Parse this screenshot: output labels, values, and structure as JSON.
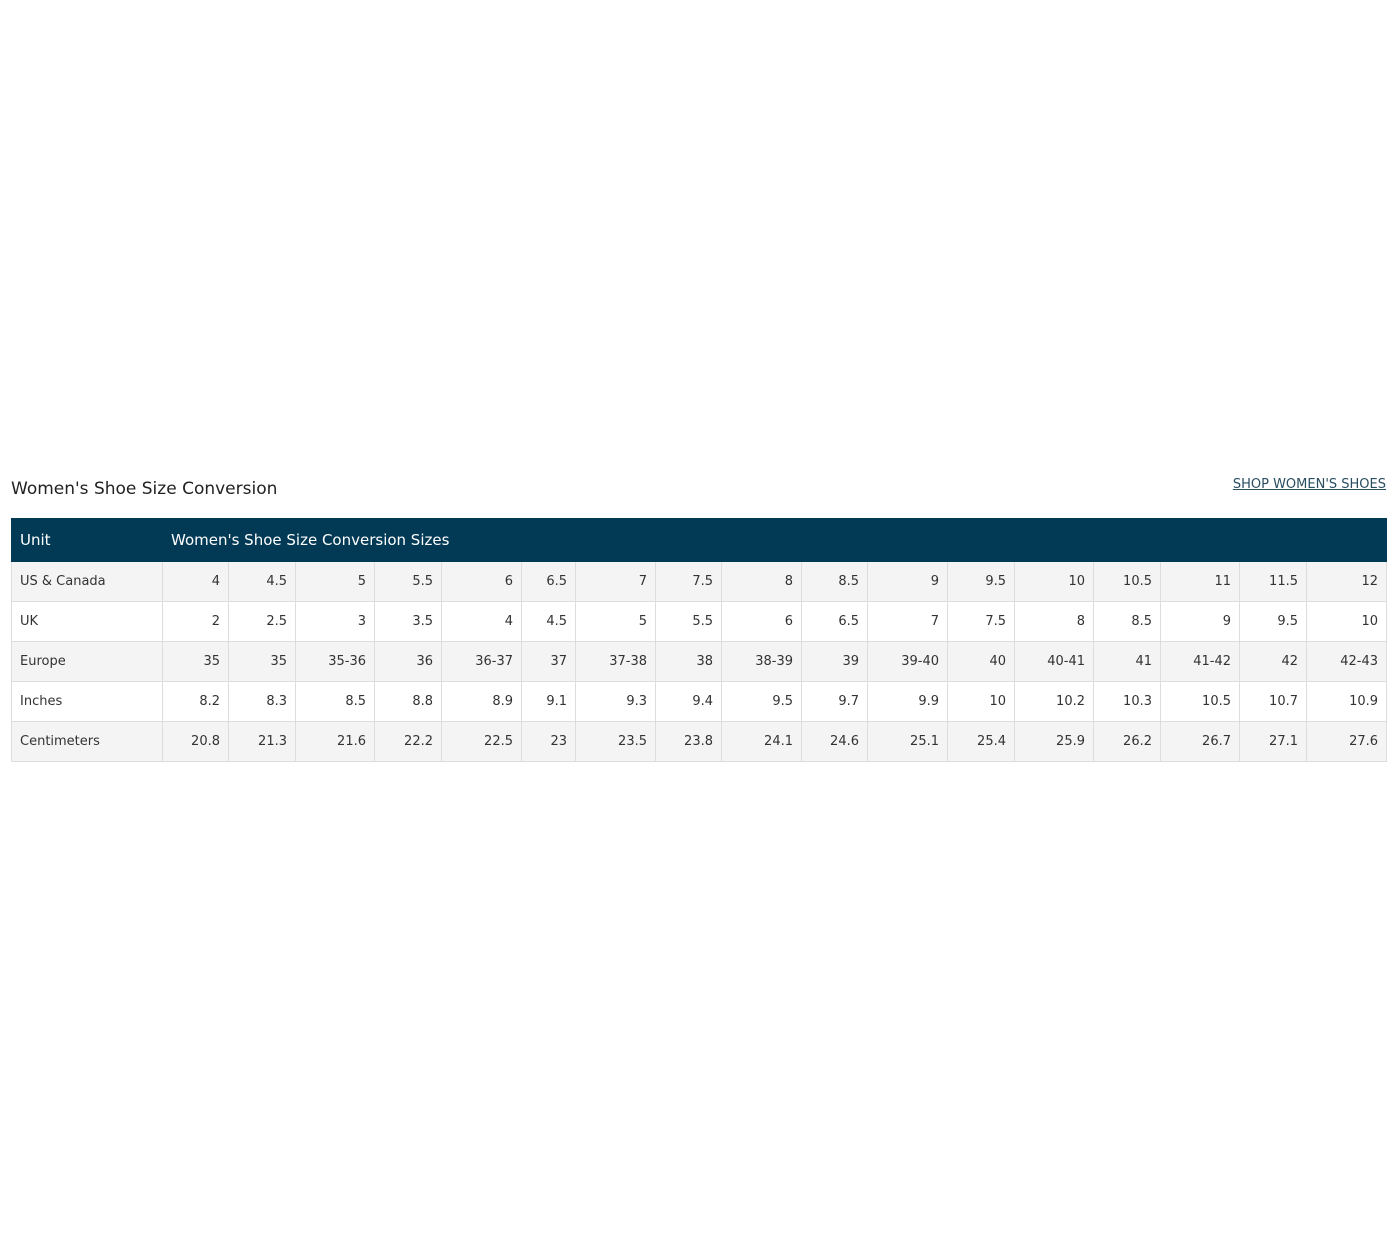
{
  "header": {
    "title": "Women's Shoe Size Conversion",
    "link": "SHOP WOMEN'S SHOES"
  },
  "table": {
    "columns": [
      "Unit",
      "Women's Shoe Size Conversion Sizes"
    ],
    "rows": [
      {
        "label": "US & Canada",
        "cells": [
          4,
          4.5,
          5,
          5.5,
          6,
          6.5,
          7,
          7.5,
          8,
          8.5,
          9,
          9.5,
          10,
          10.5,
          11,
          11.5,
          12
        ]
      },
      {
        "label": "UK",
        "cells": [
          2,
          2.5,
          3,
          3.5,
          4,
          4.5,
          5,
          5.5,
          6,
          6.5,
          7,
          7.5,
          8,
          8.5,
          9,
          9.5,
          10
        ]
      },
      {
        "label": "Europe",
        "cells": [
          35,
          35,
          "35-36",
          36,
          "36-37",
          37,
          "37-38",
          38,
          "38-39",
          39,
          "39-40",
          40,
          "40-41",
          41,
          "41-42",
          42,
          "42-43"
        ]
      },
      {
        "label": "Inches",
        "cells": [
          8.2,
          8.3,
          8.5,
          8.8,
          8.9,
          9.1,
          9.3,
          9.4,
          9.5,
          9.7,
          9.9,
          10,
          10.2,
          10.3,
          10.5,
          10.7,
          10.9
        ]
      },
      {
        "label": "Centimeters",
        "cells": [
          20.8,
          21.3,
          21.6,
          22.2,
          22.5,
          23,
          23.5,
          23.8,
          24.1,
          24.6,
          25.1,
          25.4,
          25.9,
          26.2,
          26.7,
          27.1,
          27.6
        ]
      }
    ]
  }
}
